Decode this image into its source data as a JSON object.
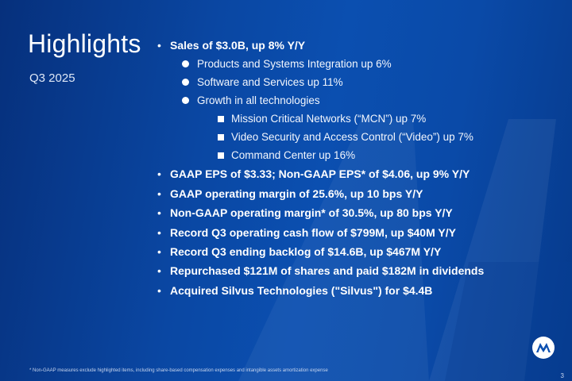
{
  "slide": {
    "title": "Highlights",
    "subtitle": "Q3 2025",
    "page_number": "3",
    "footnote": "* Non-GAAP measures exclude highlighted items, including share-based compensation expenses and intangible assets amortization expense",
    "logo_icon": "motorola-batwing-logo"
  },
  "bullets": {
    "b1": "Sales of $3.0B, up 8% Y/Y",
    "b1_subs": [
      "Products and Systems Integration up 6%",
      "Software and Services up 11%",
      "Growth in all technologies"
    ],
    "b1_subsubs": [
      "Mission Critical Networks (“MCN”) up 7%",
      "Video Security and Access Control (“Video”) up 7%",
      "Command Center up 16%"
    ],
    "b2": "GAAP EPS of $3.33; Non-GAAP EPS* of $4.06, up 9% Y/Y",
    "b3": "GAAP operating margin of 25.6%, up 10 bps Y/Y",
    "b4": "Non-GAAP operating margin* of 30.5%, up 80 bps Y/Y",
    "b5": "Record Q3 operating cash flow of $799M, up $40M Y/Y",
    "b6": "Record Q3 ending backlog of $14.6B, up $467M Y/Y",
    "b7": "Repurchased $121M of shares and paid $182M in dividends",
    "b8": "Acquired Silvus Technologies (\"Silvus\") for $4.4B"
  },
  "colors": {
    "background": "#0b4fb0",
    "text": "#ffffff"
  }
}
